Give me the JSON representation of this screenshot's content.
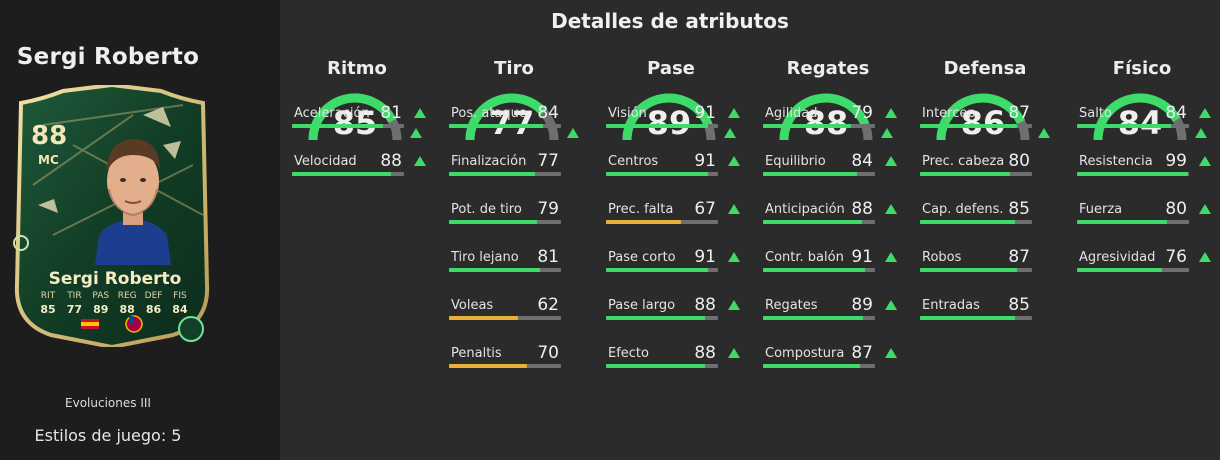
{
  "player": {
    "name": "Sergi Roberto",
    "card": {
      "rating": "88",
      "position": "MC",
      "name": "Sergi Roberto",
      "stats": [
        {
          "label": "RIT",
          "value": "85"
        },
        {
          "label": "TIR",
          "value": "77"
        },
        {
          "label": "PAS",
          "value": "89"
        },
        {
          "label": "REG",
          "value": "88"
        },
        {
          "label": "DEF",
          "value": "86"
        },
        {
          "label": "FIS",
          "value": "84"
        }
      ]
    },
    "evolution": "Evoluciones III",
    "playstyles": "Estilos de juego: 5"
  },
  "details_title": "Detalles de atributos",
  "colors": {
    "good": "#3ddc6a",
    "mid": "#e8b23a",
    "track": "#6e6f6e"
  },
  "categories": [
    {
      "name": "Ritmo",
      "value": 85,
      "attrs": [
        {
          "label": "Aceleración",
          "value": 81,
          "up": true
        },
        {
          "label": "Velocidad",
          "value": 88,
          "up": true
        }
      ]
    },
    {
      "name": "Tiro",
      "value": 77,
      "attrs": [
        {
          "label": "Pos. ataque",
          "value": 84,
          "up": false
        },
        {
          "label": "Finalización",
          "value": 77,
          "up": false
        },
        {
          "label": "Pot. de tiro",
          "value": 79,
          "up": false
        },
        {
          "label": "Tiro lejano",
          "value": 81,
          "up": false
        },
        {
          "label": "Voleas",
          "value": 62,
          "up": false
        },
        {
          "label": "Penaltis",
          "value": 70,
          "up": false
        }
      ]
    },
    {
      "name": "Pase",
      "value": 89,
      "attrs": [
        {
          "label": "Visión",
          "value": 91,
          "up": true
        },
        {
          "label": "Centros",
          "value": 91,
          "up": true
        },
        {
          "label": "Prec. falta",
          "value": 67,
          "up": true
        },
        {
          "label": "Pase corto",
          "value": 91,
          "up": true
        },
        {
          "label": "Pase largo",
          "value": 88,
          "up": true
        },
        {
          "label": "Efecto",
          "value": 88,
          "up": true
        }
      ]
    },
    {
      "name": "Regates",
      "value": 88,
      "attrs": [
        {
          "label": "Agilidad",
          "value": 79,
          "up": true
        },
        {
          "label": "Equilibrio",
          "value": 84,
          "up": true
        },
        {
          "label": "Anticipación",
          "value": 88,
          "up": true
        },
        {
          "label": "Contr. balón",
          "value": 91,
          "up": true
        },
        {
          "label": "Regates",
          "value": 89,
          "up": true
        },
        {
          "label": "Compostura",
          "value": 87,
          "up": true
        }
      ]
    },
    {
      "name": "Defensa",
      "value": 86,
      "attrs": [
        {
          "label": "Intercep.",
          "value": 87,
          "up": false
        },
        {
          "label": "Prec. cabeza",
          "value": 80,
          "up": false
        },
        {
          "label": "Cap. defens.",
          "value": 85,
          "up": false
        },
        {
          "label": "Robos",
          "value": 87,
          "up": false
        },
        {
          "label": "Entradas",
          "value": 85,
          "up": false
        }
      ]
    },
    {
      "name": "Físico",
      "value": 84,
      "attrs": [
        {
          "label": "Salto",
          "value": 84,
          "up": true
        },
        {
          "label": "Resistencia",
          "value": 99,
          "up": true
        },
        {
          "label": "Fuerza",
          "value": 80,
          "up": true
        },
        {
          "label": "Agresividad",
          "value": 76,
          "up": true
        }
      ]
    }
  ]
}
